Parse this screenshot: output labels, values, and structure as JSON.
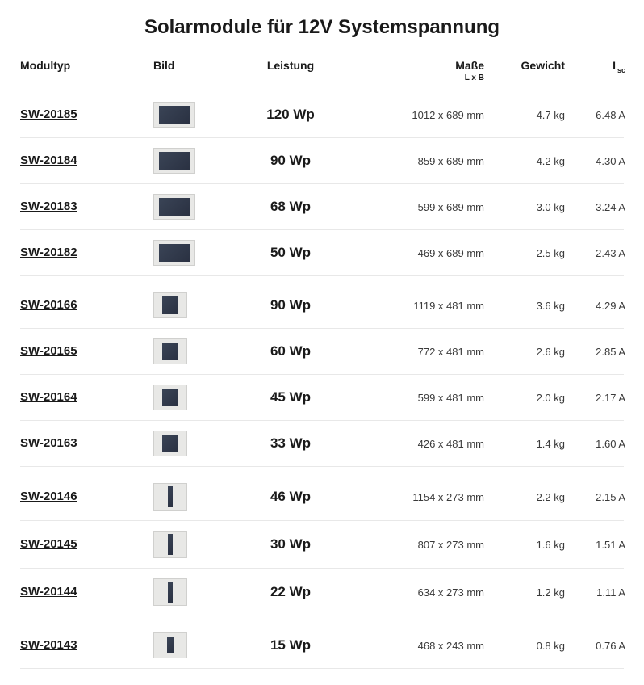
{
  "title": "Solarmodule für 12V Systemspannung",
  "columns": {
    "model": "Modultyp",
    "image": "Bild",
    "power": "Leistung",
    "dims": "Maße",
    "dims_sub": "L x B",
    "weight": "Gewicht",
    "current": "I",
    "current_sub": "sc"
  },
  "rows": [
    {
      "model": "SW-20185",
      "power": "120 Wp",
      "dims": "1012 x 689 mm",
      "weight": "4.7 kg",
      "current": "6.48 A",
      "thumb": "wide",
      "group_end": false
    },
    {
      "model": "SW-20184",
      "power": "90 Wp",
      "dims": "859 x 689 mm",
      "weight": "4.2 kg",
      "current": "4.30 A",
      "thumb": "wide",
      "group_end": false
    },
    {
      "model": "SW-20183",
      "power": "68 Wp",
      "dims": "599 x 689 mm",
      "weight": "3.0 kg",
      "current": "3.24 A",
      "thumb": "wide",
      "group_end": false
    },
    {
      "model": "SW-20182",
      "power": "50 Wp",
      "dims": "469 x 689 mm",
      "weight": "2.5 kg",
      "current": "2.43 A",
      "thumb": "wide",
      "group_end": true
    },
    {
      "model": "SW-20166",
      "power": "90 Wp",
      "dims": "1119 x 481 mm",
      "weight": "3.6 kg",
      "current": "4.29 A",
      "thumb": "med",
      "group_end": false
    },
    {
      "model": "SW-20165",
      "power": "60 Wp",
      "dims": "772 x 481 mm",
      "weight": "2.6 kg",
      "current": "2.85 A",
      "thumb": "med",
      "group_end": false
    },
    {
      "model": "SW-20164",
      "power": "45 Wp",
      "dims": "599 x 481 mm",
      "weight": "2.0 kg",
      "current": "2.17 A",
      "thumb": "med",
      "group_end": false
    },
    {
      "model": "SW-20163",
      "power": "33 Wp",
      "dims": "426 x 481 mm",
      "weight": "1.4 kg",
      "current": "1.60 A",
      "thumb": "med",
      "group_end": true
    },
    {
      "model": "SW-20146",
      "power": "46 Wp",
      "dims": "1154 x 273 mm",
      "weight": "2.2 kg",
      "current": "2.15 A",
      "thumb": "narrow",
      "group_end": false
    },
    {
      "model": "SW-20145",
      "power": "30 Wp",
      "dims": "807 x 273 mm",
      "weight": "1.6 kg",
      "current": "1.51 A",
      "thumb": "narrow",
      "group_end": false
    },
    {
      "model": "SW-20144",
      "power": "22 Wp",
      "dims": "634 x 273 mm",
      "weight": "1.2 kg",
      "current": "1.11 A",
      "thumb": "narrow",
      "group_end": true
    },
    {
      "model": "SW-20143",
      "power": "15 Wp",
      "dims": "468 x 243 mm",
      "weight": "0.8 kg",
      "current": "0.76 A",
      "thumb": "small",
      "group_end": false
    }
  ],
  "colors": {
    "text": "#2a2a2a",
    "heading": "#1a1a1a",
    "border": "#e8e8e8",
    "thumb_bg": "#e8e8e6",
    "panel_dark": "#2a3142"
  }
}
